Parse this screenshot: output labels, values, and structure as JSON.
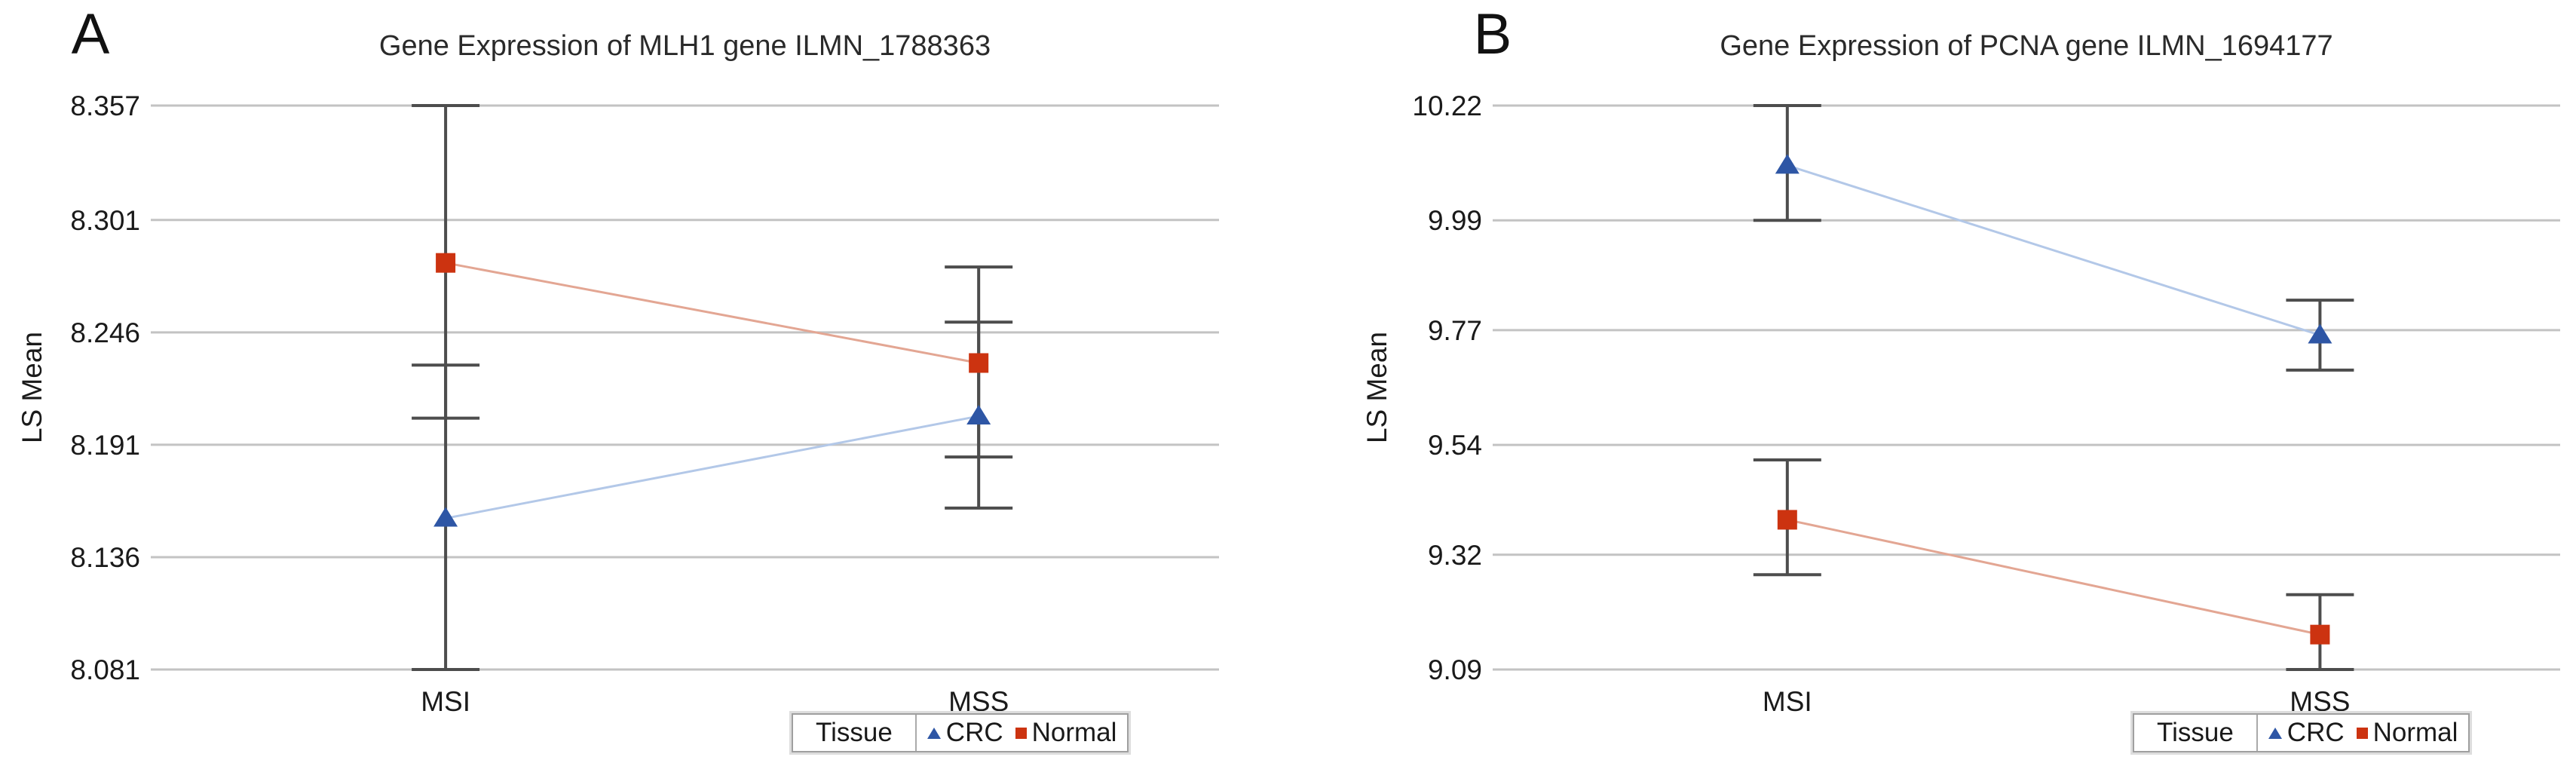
{
  "chart_data": [
    {
      "type": "line",
      "panel_label": "A",
      "title": "Gene Expression of MLH1 gene ILMN_1788363",
      "ylabel": "LS Mean",
      "xlabel": "",
      "categories": [
        "MSI",
        "MSS"
      ],
      "ytick_labels": [
        "8.357",
        "8.301",
        "8.246",
        "8.191",
        "8.136",
        "8.081"
      ],
      "ylim": [
        8.081,
        8.357
      ],
      "grid": true,
      "gridline_color": "#c3c3c3",
      "error_bar_color": "#4d4d4d",
      "legend": {
        "group_title": "Tissue",
        "entries": [
          "CRC",
          "Normal"
        ],
        "position": "bottom"
      },
      "series": [
        {
          "name": "CRC",
          "marker": "triangle",
          "marker_color": "#2e56a5",
          "line_color": "#b3c8e8",
          "values": [
            8.155,
            8.205
          ],
          "ci_low": [
            8.081,
            8.16
          ],
          "ci_high": [
            8.23,
            8.251
          ]
        },
        {
          "name": "Normal",
          "marker": "square",
          "marker_color": "#cc3310",
          "line_color": "#e3a693",
          "values": [
            8.28,
            8.231
          ],
          "ci_low": [
            8.204,
            8.185
          ],
          "ci_high": [
            8.357,
            8.278
          ]
        }
      ]
    },
    {
      "type": "line",
      "panel_label": "B",
      "title": "Gene Expression of PCNA gene ILMN_1694177",
      "ylabel": "LS Mean",
      "xlabel": "",
      "categories": [
        "MSI",
        "MSS"
      ],
      "ytick_labels": [
        "10.22",
        "9.99",
        "9.77",
        "9.54",
        "9.32",
        "9.09"
      ],
      "ylim": [
        9.09,
        10.22
      ],
      "grid": true,
      "gridline_color": "#c3c3c3",
      "error_bar_color": "#4d4d4d",
      "legend": {
        "group_title": "Tissue",
        "entries": [
          "CRC",
          "Normal"
        ],
        "position": "bottom"
      },
      "series": [
        {
          "name": "CRC",
          "marker": "triangle",
          "marker_color": "#2e56a5",
          "line_color": "#b3c8e8",
          "values": [
            10.1,
            9.76
          ],
          "ci_low": [
            9.99,
            9.69
          ],
          "ci_high": [
            10.22,
            9.83
          ]
        },
        {
          "name": "Normal",
          "marker": "square",
          "marker_color": "#cc3310",
          "line_color": "#e3a693",
          "values": [
            9.39,
            9.16
          ],
          "ci_low": [
            9.28,
            9.09
          ],
          "ci_high": [
            9.51,
            9.24
          ]
        }
      ]
    }
  ]
}
